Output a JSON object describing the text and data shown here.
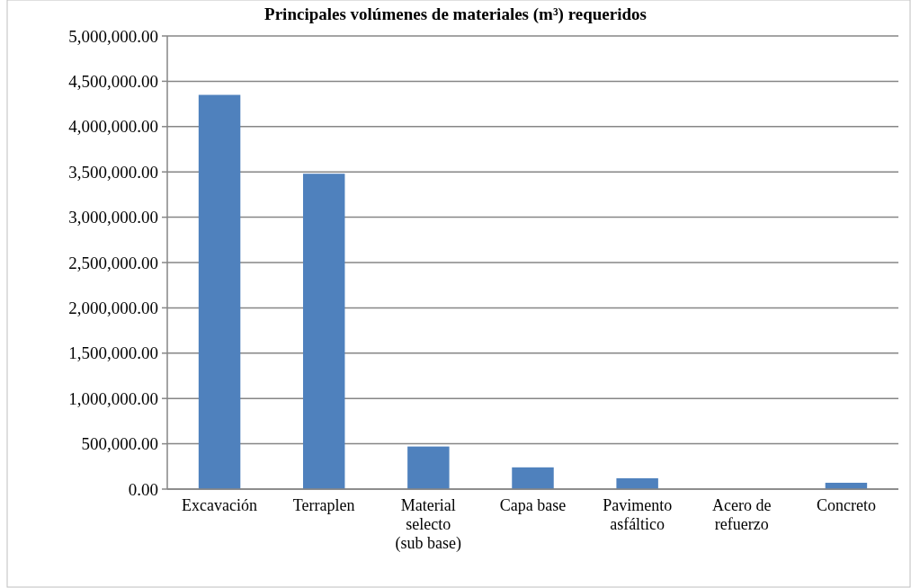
{
  "chart_data": {
    "type": "bar",
    "title": "Principales volúmenes de materiales (m³) requeridos",
    "categories": [
      "Excavación",
      "Terraplen",
      "Material selecto (sub base)",
      "Capa base",
      "Pavimento asfáltico",
      "Acero de refuerzo",
      "Concreto"
    ],
    "values": [
      4350000,
      3480000,
      470000,
      240000,
      120000,
      0,
      70000
    ],
    "color": "#4f81bd",
    "ylim": [
      0,
      5000000
    ],
    "yticks": [
      {
        "value": 0,
        "label": "0.00"
      },
      {
        "value": 500000,
        "label": "500,000.00"
      },
      {
        "value": 1000000,
        "label": "1,000,000.00"
      },
      {
        "value": 1500000,
        "label": "1,500,000.00"
      },
      {
        "value": 2000000,
        "label": "2,000,000.00"
      },
      {
        "value": 2500000,
        "label": "2,500,000.00"
      },
      {
        "value": 3000000,
        "label": "3,000,000.00"
      },
      {
        "value": 3500000,
        "label": "3,500,000.00"
      },
      {
        "value": 4000000,
        "label": "4,000,000.00"
      },
      {
        "value": 4500000,
        "label": "4,500,000.00"
      },
      {
        "value": 5000000,
        "label": "5,000,000.00"
      }
    ],
    "grid": "y"
  }
}
